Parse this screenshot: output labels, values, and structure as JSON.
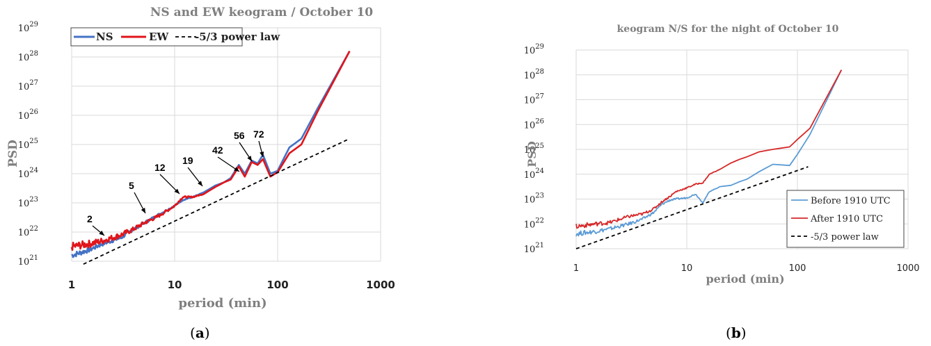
{
  "chart_data": [
    {
      "id": "a",
      "type": "line",
      "title": "NS and EW keogram / October 10",
      "xlabel": "period (min)",
      "ylabel": "PSD",
      "xscale": "log",
      "yscale": "log",
      "xlim": [
        1,
        1000
      ],
      "ylim_exp": [
        21,
        29
      ],
      "x_tick_labels": [
        "1",
        "10",
        "100",
        "1000"
      ],
      "y_tick_base": "10",
      "y_tick_exponents": [
        "21",
        "22",
        "23",
        "24",
        "25",
        "26",
        "27",
        "28",
        "29"
      ],
      "grid": true,
      "legend_position": "top",
      "caption": {
        "open": "(",
        "letter": "a",
        "close": ")"
      },
      "series": [
        {
          "name": "NS",
          "color": "#4472c4",
          "points": [
            [
              1,
              21.2
            ],
            [
              1.5,
              21.4
            ],
            [
              2,
              21.6
            ],
            [
              3,
              21.8
            ],
            [
              4,
              22.1
            ],
            [
              5,
              22.3
            ],
            [
              7,
              22.6
            ],
            [
              10,
              22.9
            ],
            [
              12,
              23.1
            ],
            [
              15,
              23.2
            ],
            [
              19,
              23.35
            ],
            [
              25,
              23.6
            ],
            [
              30,
              23.7
            ],
            [
              35,
              23.85
            ],
            [
              42,
              24.3
            ],
            [
              48,
              24.0
            ],
            [
              56,
              24.45
            ],
            [
              64,
              24.35
            ],
            [
              72,
              24.65
            ],
            [
              85,
              24.0
            ],
            [
              100,
              24.1
            ],
            [
              130,
              24.9
            ],
            [
              170,
              25.2
            ],
            [
              250,
              26.3
            ],
            [
              500,
              28.2
            ]
          ]
        },
        {
          "name": "EW",
          "color": "#e0151b",
          "points": [
            [
              1,
              21.5
            ],
            [
              1.5,
              21.6
            ],
            [
              2,
              21.7
            ],
            [
              3,
              21.9
            ],
            [
              4,
              22.1
            ],
            [
              5,
              22.3
            ],
            [
              7,
              22.55
            ],
            [
              10,
              22.9
            ],
            [
              12,
              23.2
            ],
            [
              15,
              23.2
            ],
            [
              19,
              23.3
            ],
            [
              25,
              23.55
            ],
            [
              30,
              23.7
            ],
            [
              35,
              23.8
            ],
            [
              42,
              24.25
            ],
            [
              48,
              23.9
            ],
            [
              56,
              24.4
            ],
            [
              64,
              24.3
            ],
            [
              72,
              24.5
            ],
            [
              85,
              23.9
            ],
            [
              100,
              24.05
            ],
            [
              130,
              24.7
            ],
            [
              170,
              25.0
            ],
            [
              250,
              26.2
            ],
            [
              500,
              28.2
            ]
          ]
        },
        {
          "name": "-5/3 power law",
          "color": "#000000",
          "style": "dashed",
          "points": [
            [
              1.3,
              20.9
            ],
            [
              500,
              25.2
            ]
          ]
        }
      ],
      "annotations": [
        {
          "text": "2",
          "x": 2,
          "y": 22.0
        },
        {
          "text": "5",
          "x": 5,
          "y": 22.6
        },
        {
          "text": "12",
          "x": 12,
          "y": 23.3
        },
        {
          "text": "19",
          "x": 19,
          "y": 23.6
        },
        {
          "text": "42",
          "x": 42,
          "y": 24.3
        },
        {
          "text": "56",
          "x": 56,
          "y": 24.6
        },
        {
          "text": "72",
          "x": 72,
          "y": 24.8
        }
      ]
    },
    {
      "id": "b",
      "type": "line",
      "title": "keogram N/S for the night of October 10",
      "xlabel": "period (min)",
      "ylabel": "PSD",
      "xscale": "log",
      "yscale": "log",
      "xlim": [
        1,
        1000
      ],
      "ylim_exp": [
        21,
        29
      ],
      "x_tick_labels": [
        "1",
        "10",
        "100",
        "1000"
      ],
      "y_tick_base": "10",
      "y_tick_exponents": [
        "21",
        "22",
        "23",
        "24",
        "25",
        "26",
        "27",
        "28",
        "29"
      ],
      "grid": true,
      "legend_position": "bottom-right",
      "caption": {
        "open": "(",
        "letter": "b",
        "close": ")"
      },
      "series": [
        {
          "name": "Before 1910 UTC",
          "color": "#5b9bd5",
          "points": [
            [
              1,
              21.6
            ],
            [
              1.5,
              21.7
            ],
            [
              2,
              21.8
            ],
            [
              3,
              22.0
            ],
            [
              4,
              22.2
            ],
            [
              5,
              22.45
            ],
            [
              6,
              22.8
            ],
            [
              7,
              22.95
            ],
            [
              8,
              23.0
            ],
            [
              10,
              23.05
            ],
            [
              12,
              23.2
            ],
            [
              14,
              22.85
            ],
            [
              16,
              23.3
            ],
            [
              20,
              23.5
            ],
            [
              25,
              23.55
            ],
            [
              30,
              23.7
            ],
            [
              35,
              23.8
            ],
            [
              45,
              24.1
            ],
            [
              60,
              24.4
            ],
            [
              85,
              24.35
            ],
            [
              100,
              24.8
            ],
            [
              130,
              25.6
            ],
            [
              250,
              28.2
            ]
          ]
        },
        {
          "name": "After 1910 UTC",
          "color": "#d62728",
          "points": [
            [
              1,
              21.9
            ],
            [
              1.5,
              22.0
            ],
            [
              2,
              22.05
            ],
            [
              3,
              22.3
            ],
            [
              4,
              22.4
            ],
            [
              5,
              22.6
            ],
            [
              6,
              22.9
            ],
            [
              7,
              23.1
            ],
            [
              8,
              23.3
            ],
            [
              10,
              23.45
            ],
            [
              12,
              23.6
            ],
            [
              14,
              23.65
            ],
            [
              16,
              24.0
            ],
            [
              20,
              24.2
            ],
            [
              25,
              24.45
            ],
            [
              30,
              24.6
            ],
            [
              35,
              24.7
            ],
            [
              45,
              24.9
            ],
            [
              60,
              25.0
            ],
            [
              85,
              25.1
            ],
            [
              100,
              25.4
            ],
            [
              130,
              25.85
            ],
            [
              250,
              28.2
            ]
          ]
        },
        {
          "name": "-5/3 power law",
          "color": "#000000",
          "style": "dashed",
          "points": [
            [
              1,
              21.0
            ],
            [
              125,
              24.3
            ]
          ]
        }
      ]
    }
  ]
}
